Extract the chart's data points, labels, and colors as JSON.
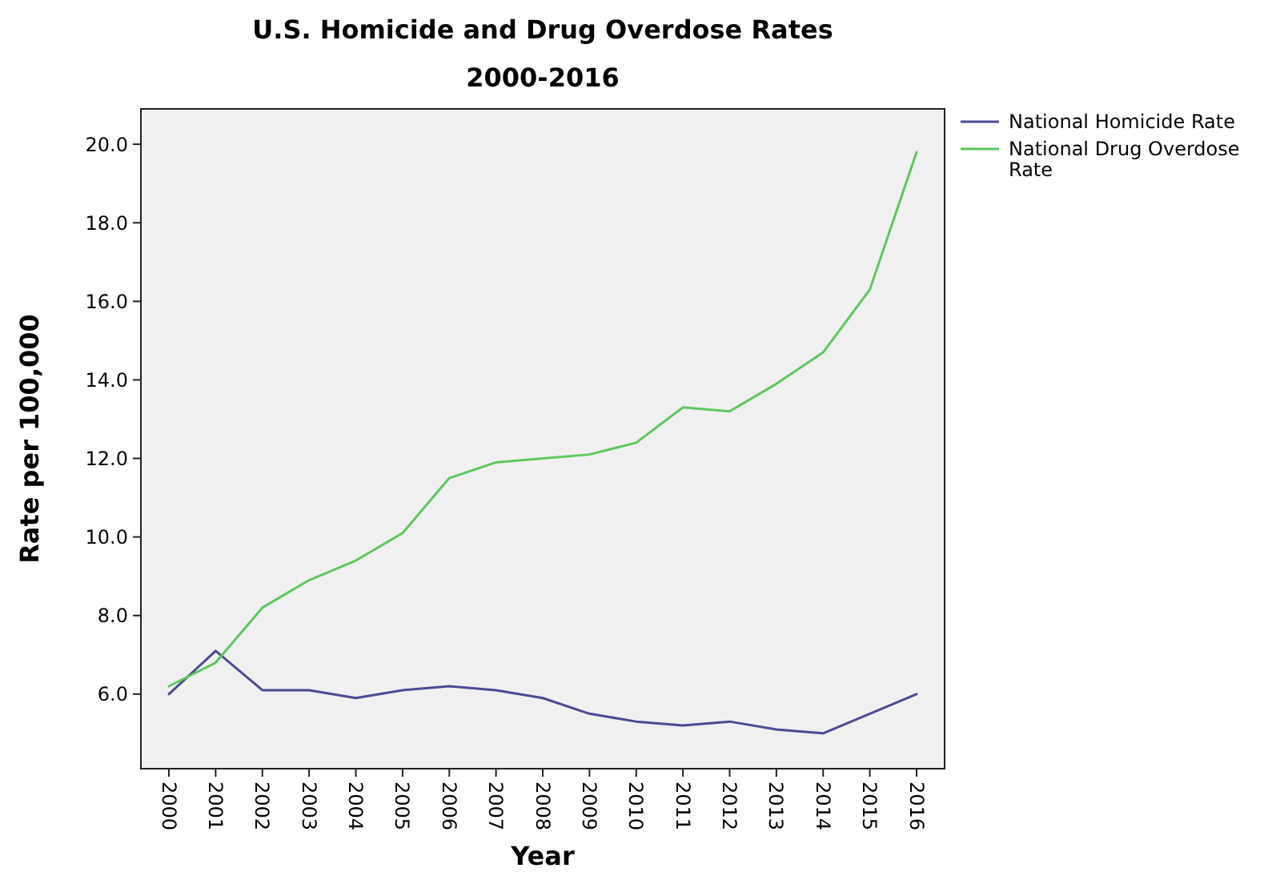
{
  "chart_data": {
    "type": "line",
    "title": "U.S. Homicide and Drug Overdose Rates",
    "subtitle": "2000-2016",
    "xlabel": "Year",
    "ylabel": "Rate per 100,000",
    "categories": [
      "2000",
      "2001",
      "2002",
      "2003",
      "2004",
      "2005",
      "2006",
      "2007",
      "2008",
      "2009",
      "2010",
      "2011",
      "2012",
      "2013",
      "2014",
      "2015",
      "2016"
    ],
    "series": [
      {
        "name": "National Homicide Rate",
        "color": "#4a4a94",
        "values": [
          6.0,
          7.1,
          6.1,
          6.1,
          5.9,
          6.1,
          6.2,
          6.1,
          5.9,
          5.5,
          5.3,
          5.2,
          5.3,
          5.1,
          5.0,
          5.5,
          6.0
        ]
      },
      {
        "name": "National Drug Overdose Rate",
        "color": "#5cc85c",
        "values": [
          6.2,
          6.8,
          8.2,
          8.9,
          9.4,
          10.1,
          11.5,
          11.9,
          12.0,
          12.1,
          12.4,
          13.3,
          13.2,
          13.9,
          14.7,
          16.3,
          19.8
        ]
      }
    ],
    "ylim": [
      4.1,
      20.9
    ],
    "yticks": [
      {
        "value": 6,
        "label": "6.0"
      },
      {
        "value": 8,
        "label": "8.0"
      },
      {
        "value": 10,
        "label": "10.0"
      },
      {
        "value": 12,
        "label": "12.0"
      },
      {
        "value": 14,
        "label": "14.0"
      },
      {
        "value": 16,
        "label": "16.0"
      },
      {
        "value": 18,
        "label": "18.0"
      },
      {
        "value": 20,
        "label": "20.0"
      }
    ],
    "grid": false,
    "legend": "top right",
    "marker": "none",
    "line_style": "solid"
  }
}
